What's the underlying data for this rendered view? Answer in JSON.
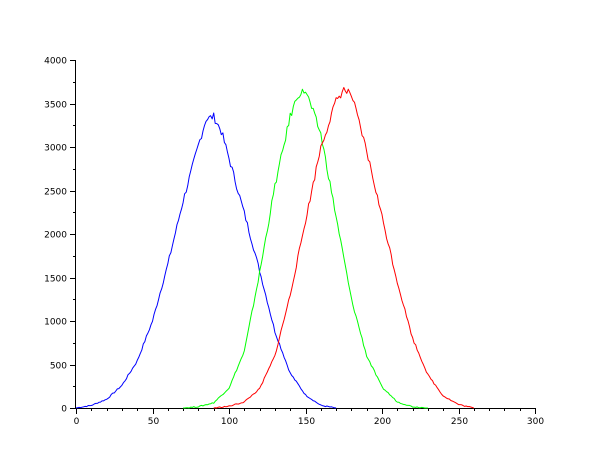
{
  "chart_data": {
    "type": "line",
    "title": "",
    "xlabel": "",
    "ylabel": "",
    "xlim": [
      0,
      300
    ],
    "ylim": [
      0,
      4000
    ],
    "grid": false,
    "x_ticks": [
      0,
      50,
      100,
      150,
      200,
      250,
      300
    ],
    "y_ticks": [
      0,
      500,
      1000,
      1500,
      2000,
      2500,
      3000,
      3500,
      4000
    ],
    "x_tick_labels": [
      "0",
      "50",
      "100",
      "150",
      "200",
      "250",
      "300"
    ],
    "y_tick_labels": [
      "0",
      "500",
      "1000",
      "1500",
      "2000",
      "2500",
      "3000",
      "3500",
      "4000"
    ],
    "series": [
      {
        "color": "#0000ff",
        "x": [
          0,
          10,
          20,
          30,
          40,
          50,
          60,
          70,
          80,
          85,
          90,
          95,
          100,
          110,
          120,
          130,
          140,
          150,
          160,
          170
        ],
        "y": [
          0,
          30,
          100,
          260,
          540,
          1000,
          1650,
          2380,
          3020,
          3320,
          3350,
          3180,
          2870,
          2240,
          1580,
          880,
          400,
          150,
          30,
          0
        ]
      },
      {
        "color": "#00ff00",
        "x": [
          70,
          80,
          90,
          100,
          110,
          120,
          130,
          140,
          145,
          150,
          160,
          170,
          180,
          190,
          200,
          210,
          220,
          230
        ],
        "y": [
          0,
          15,
          60,
          230,
          650,
          1550,
          2550,
          3350,
          3600,
          3650,
          3150,
          2200,
          1250,
          600,
          240,
          70,
          15,
          0
        ]
      },
      {
        "color": "#ff0000",
        "x": [
          90,
          100,
          110,
          120,
          130,
          140,
          150,
          160,
          170,
          175,
          180,
          190,
          200,
          210,
          220,
          230,
          240,
          250,
          260
        ],
        "y": [
          0,
          20,
          70,
          220,
          600,
          1300,
          2150,
          3000,
          3530,
          3660,
          3600,
          2950,
          2200,
          1450,
          800,
          380,
          140,
          40,
          0
        ]
      }
    ]
  }
}
